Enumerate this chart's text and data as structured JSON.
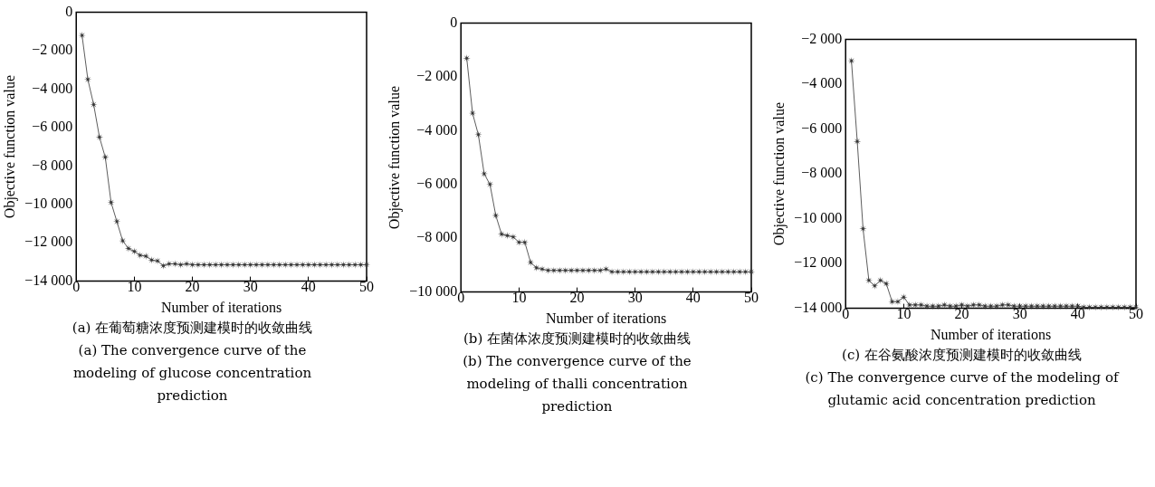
{
  "chart_data": [
    {
      "type": "line",
      "xlabel": "Number of iterations",
      "ylabel": "Objective function value",
      "annotations": [
        "(a) 在葡萄糖浓度预测建模时的收敛曲线",
        "(a) The convergence curve of the modeling of glucose concentration prediction"
      ],
      "x": [
        1,
        2,
        3,
        4,
        5,
        6,
        7,
        8,
        9,
        10,
        11,
        12,
        13,
        14,
        15,
        16,
        17,
        18,
        19,
        20,
        21,
        22,
        23,
        24,
        25,
        26,
        27,
        28,
        29,
        30,
        31,
        32,
        33,
        34,
        35,
        36,
        37,
        38,
        39,
        40,
        41,
        42,
        43,
        44,
        45,
        46,
        47,
        48,
        49,
        50
      ],
      "series": [
        {
          "color": "#333333",
          "values": [
            -1200,
            -3500,
            -4800,
            -6500,
            -7550,
            -9900,
            -10900,
            -11900,
            -12300,
            -12450,
            -12650,
            -12700,
            -12900,
            -12950,
            -13200,
            -13100,
            -13100,
            -13150,
            -13100,
            -13150,
            -13150,
            -13150,
            -13150,
            -13150,
            -13150,
            -13150,
            -13150,
            -13150,
            -13150,
            -13150,
            -13150,
            -13150,
            -13150,
            -13150,
            -13150,
            -13150,
            -13150,
            -13150,
            -13150,
            -13150,
            -13150,
            -13150,
            -13150,
            -13150,
            -13150,
            -13150,
            -13150,
            -13150,
            -13150,
            -13150
          ]
        }
      ],
      "xlim": [
        0,
        50
      ],
      "xticks": [
        0,
        10,
        20,
        30,
        40,
        50
      ],
      "ylim": [
        -14000,
        0
      ],
      "yticks": [
        0,
        {
          "value": -2000,
          "label": "−2 000"
        },
        {
          "value": -4000,
          "label": "−4 000"
        },
        {
          "value": -6000,
          "label": "−6 000"
        },
        {
          "value": -8000,
          "label": "−8 000"
        },
        {
          "value": -10000,
          "label": "−10 000"
        },
        {
          "value": -12000,
          "label": "−12 000"
        },
        {
          "value": -14000,
          "label": "−14 000"
        }
      ],
      "marker": "star",
      "line_style": "solid",
      "grid": false,
      "legend": false
    },
    {
      "type": "line",
      "xlabel": "Number of iterations",
      "ylabel": "Objective function value",
      "annotations": [
        "(b) 在菌体浓度预测建模时的收敛曲线",
        "(b) The convergence curve of the modeling of thalli concentration prediction"
      ],
      "x": [
        1,
        2,
        3,
        4,
        5,
        6,
        7,
        8,
        9,
        10,
        11,
        12,
        13,
        14,
        15,
        16,
        17,
        18,
        19,
        20,
        21,
        22,
        23,
        24,
        25,
        26,
        27,
        28,
        29,
        30,
        31,
        32,
        33,
        34,
        35,
        36,
        37,
        38,
        39,
        40,
        41,
        42,
        43,
        44,
        45,
        46,
        47,
        48,
        49,
        50
      ],
      "series": [
        {
          "color": "#333333",
          "values": [
            -1300,
            -3350,
            -4150,
            -5600,
            -6000,
            -7150,
            -7850,
            -7900,
            -7950,
            -8150,
            -8150,
            -8900,
            -9100,
            -9150,
            -9200,
            -9200,
            -9200,
            -9200,
            -9200,
            -9200,
            -9200,
            -9200,
            -9200,
            -9200,
            -9150,
            -9250,
            -9250,
            -9250,
            -9250,
            -9250,
            -9250,
            -9250,
            -9250,
            -9250,
            -9250,
            -9250,
            -9250,
            -9250,
            -9250,
            -9250,
            -9250,
            -9250,
            -9250,
            -9250,
            -9250,
            -9250,
            -9250,
            -9250,
            -9250,
            -9250
          ]
        }
      ],
      "xlim": [
        0,
        50
      ],
      "xticks": [
        0,
        10,
        20,
        30,
        40,
        50
      ],
      "ylim": [
        -10000,
        0
      ],
      "yticks": [
        0,
        {
          "value": -2000,
          "label": "−2 000"
        },
        {
          "value": -4000,
          "label": "−4 000"
        },
        {
          "value": -6000,
          "label": "−6 000"
        },
        {
          "value": -8000,
          "label": "−8 000"
        },
        {
          "value": -10000,
          "label": "−10 000"
        }
      ],
      "marker": "star",
      "line_style": "solid",
      "grid": false,
      "legend": false
    },
    {
      "type": "line",
      "xlabel": "Number of iterations",
      "ylabel": "Objective function value",
      "annotations": [
        "(c) 在谷氨酸浓度预测建模时的收敛曲线",
        "(c) The convergence curve of the modeling of glutamic acid concentration prediction"
      ],
      "x": [
        1,
        2,
        3,
        4,
        5,
        6,
        7,
        8,
        9,
        10,
        11,
        12,
        13,
        14,
        15,
        16,
        17,
        18,
        19,
        20,
        21,
        22,
        23,
        24,
        25,
        26,
        27,
        28,
        29,
        30,
        31,
        32,
        33,
        34,
        35,
        36,
        37,
        38,
        39,
        40,
        41,
        42,
        43,
        44,
        45,
        46,
        47,
        48,
        49,
        50
      ],
      "series": [
        {
          "color": "#333333",
          "values": [
            -2950,
            -6550,
            -10450,
            -12750,
            -13000,
            -12750,
            -12900,
            -13700,
            -13700,
            -13500,
            -13850,
            -13850,
            -13850,
            -13900,
            -13900,
            -13900,
            -13850,
            -13900,
            -13900,
            -13850,
            -13900,
            -13850,
            -13850,
            -13900,
            -13900,
            -13900,
            -13850,
            -13850,
            -13900,
            -13900,
            -13900,
            -13900,
            -13900,
            -13900,
            -13900,
            -13900,
            -13900,
            -13900,
            -13900,
            -13900,
            -13950,
            -13950,
            -13950,
            -13950,
            -13950,
            -13950,
            -13950,
            -13950,
            -13950,
            -13950
          ]
        }
      ],
      "xlim": [
        0,
        50
      ],
      "xticks": [
        0,
        10,
        20,
        30,
        40,
        50
      ],
      "ylim": [
        -14000,
        -2000
      ],
      "yticks": [
        {
          "value": -2000,
          "label": "−2 000"
        },
        {
          "value": -4000,
          "label": "−4 000"
        },
        {
          "value": -6000,
          "label": "−6 000"
        },
        {
          "value": -8000,
          "label": "−8 000"
        },
        {
          "value": -10000,
          "label": "−10 000"
        },
        {
          "value": -12000,
          "label": "−12 000"
        },
        {
          "value": -14000,
          "label": "−14 000"
        }
      ],
      "marker": "star",
      "line_style": "solid",
      "grid": false,
      "legend": false
    }
  ]
}
